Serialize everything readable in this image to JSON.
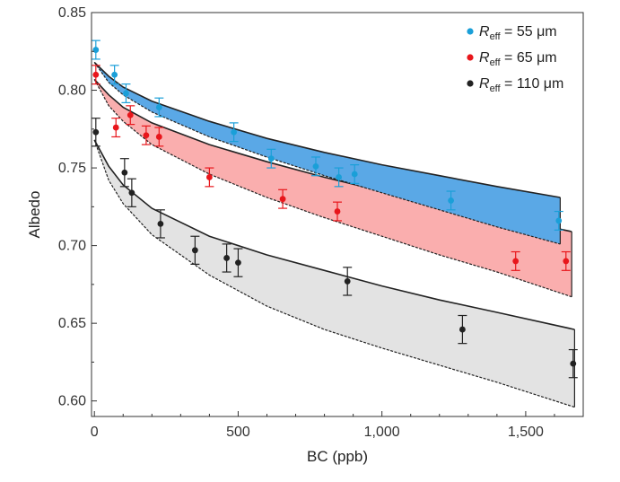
{
  "chart_data": {
    "type": "scatter",
    "xlabel": "BC (ppb)",
    "ylabel": "Albedo",
    "xlim": [
      -10,
      1700
    ],
    "ylim": [
      0.59,
      0.85
    ],
    "x_ticks": [
      0,
      500,
      1000,
      1500
    ],
    "x_tick_labels": [
      "0",
      "500",
      "1,000",
      "1,500"
    ],
    "y_ticks": [
      0.6,
      0.65,
      0.7,
      0.75,
      0.8,
      0.85
    ],
    "y_tick_labels": [
      "0.60",
      "0.65",
      "0.70",
      "0.75",
      "0.80",
      "0.85"
    ],
    "grid": false,
    "legend_position": "top-right",
    "series": [
      {
        "name_prefix": "R",
        "name_sub": "eff",
        "name_suffix": " = 55 μm",
        "color": "#1a9fd8",
        "fill_color": "#5aa8e6",
        "points": [
          {
            "x": 5,
            "y": 0.826,
            "err": 0.006
          },
          {
            "x": 70,
            "y": 0.81,
            "err": 0.006
          },
          {
            "x": 110,
            "y": 0.798,
            "err": 0.006
          },
          {
            "x": 225,
            "y": 0.789,
            "err": 0.006
          },
          {
            "x": 485,
            "y": 0.773,
            "err": 0.006
          },
          {
            "x": 615,
            "y": 0.756,
            "err": 0.006
          },
          {
            "x": 770,
            "y": 0.751,
            "err": 0.006
          },
          {
            "x": 850,
            "y": 0.744,
            "err": 0.006
          },
          {
            "x": 905,
            "y": 0.746,
            "err": 0.006
          },
          {
            "x": 1240,
            "y": 0.729,
            "err": 0.006
          },
          {
            "x": 1615,
            "y": 0.716,
            "err": 0.006
          }
        ],
        "band_upper": [
          [
            0,
            0.818
          ],
          [
            50,
            0.809
          ],
          [
            100,
            0.802
          ],
          [
            200,
            0.793
          ],
          [
            400,
            0.78
          ],
          [
            600,
            0.769
          ],
          [
            800,
            0.76
          ],
          [
            1000,
            0.752
          ],
          [
            1200,
            0.745
          ],
          [
            1400,
            0.738
          ],
          [
            1620,
            0.731
          ]
        ],
        "band_lower": [
          [
            0,
            0.818
          ],
          [
            50,
            0.805
          ],
          [
            100,
            0.797
          ],
          [
            200,
            0.786
          ],
          [
            400,
            0.77
          ],
          [
            600,
            0.757
          ],
          [
            800,
            0.745
          ],
          [
            1000,
            0.734
          ],
          [
            1200,
            0.723
          ],
          [
            1400,
            0.712
          ],
          [
            1620,
            0.701
          ]
        ]
      },
      {
        "name_prefix": "R",
        "name_sub": "eff",
        "name_suffix": " = 65 μm",
        "color": "#e8161b",
        "fill_color": "#f77878",
        "points": [
          {
            "x": 5,
            "y": 0.81,
            "err": 0.006
          },
          {
            "x": 75,
            "y": 0.776,
            "err": 0.006
          },
          {
            "x": 125,
            "y": 0.784,
            "err": 0.006
          },
          {
            "x": 180,
            "y": 0.771,
            "err": 0.006
          },
          {
            "x": 225,
            "y": 0.77,
            "err": 0.006
          },
          {
            "x": 400,
            "y": 0.744,
            "err": 0.006
          },
          {
            "x": 655,
            "y": 0.73,
            "err": 0.006
          },
          {
            "x": 845,
            "y": 0.722,
            "err": 0.006
          },
          {
            "x": 1465,
            "y": 0.69,
            "err": 0.006
          },
          {
            "x": 1640,
            "y": 0.69,
            "err": 0.006
          }
        ],
        "band_upper": [
          [
            0,
            0.807
          ],
          [
            50,
            0.797
          ],
          [
            100,
            0.789
          ],
          [
            200,
            0.779
          ],
          [
            400,
            0.765
          ],
          [
            600,
            0.754
          ],
          [
            800,
            0.744
          ],
          [
            1000,
            0.735
          ],
          [
            1200,
            0.727
          ],
          [
            1400,
            0.719
          ],
          [
            1660,
            0.709
          ]
        ],
        "band_lower": [
          [
            0,
            0.807
          ],
          [
            50,
            0.79
          ],
          [
            100,
            0.78
          ],
          [
            200,
            0.765
          ],
          [
            400,
            0.746
          ],
          [
            600,
            0.731
          ],
          [
            800,
            0.718
          ],
          [
            1000,
            0.706
          ],
          [
            1200,
            0.694
          ],
          [
            1400,
            0.683
          ],
          [
            1660,
            0.667
          ]
        ]
      },
      {
        "name_prefix": "R",
        "name_sub": "eff",
        "name_suffix": " = 110 μm",
        "color": "#222222",
        "fill_color": "#d9d9d9",
        "points": [
          {
            "x": 5,
            "y": 0.773,
            "err": 0.009
          },
          {
            "x": 105,
            "y": 0.747,
            "err": 0.009
          },
          {
            "x": 130,
            "y": 0.734,
            "err": 0.009
          },
          {
            "x": 230,
            "y": 0.714,
            "err": 0.009
          },
          {
            "x": 350,
            "y": 0.697,
            "err": 0.009
          },
          {
            "x": 460,
            "y": 0.692,
            "err": 0.009
          },
          {
            "x": 500,
            "y": 0.689,
            "err": 0.009
          },
          {
            "x": 880,
            "y": 0.677,
            "err": 0.009
          },
          {
            "x": 1280,
            "y": 0.646,
            "err": 0.009
          },
          {
            "x": 1665,
            "y": 0.624,
            "err": 0.009
          }
        ],
        "band_upper": [
          [
            0,
            0.768
          ],
          [
            50,
            0.751
          ],
          [
            100,
            0.739
          ],
          [
            200,
            0.724
          ],
          [
            400,
            0.706
          ],
          [
            600,
            0.694
          ],
          [
            800,
            0.684
          ],
          [
            1000,
            0.674
          ],
          [
            1200,
            0.665
          ],
          [
            1400,
            0.657
          ],
          [
            1670,
            0.646
          ]
        ],
        "band_lower": [
          [
            0,
            0.768
          ],
          [
            50,
            0.742
          ],
          [
            100,
            0.727
          ],
          [
            200,
            0.707
          ],
          [
            400,
            0.681
          ],
          [
            600,
            0.661
          ],
          [
            800,
            0.646
          ],
          [
            1000,
            0.634
          ],
          [
            1200,
            0.623
          ],
          [
            1400,
            0.612
          ],
          [
            1670,
            0.596
          ]
        ]
      }
    ]
  }
}
